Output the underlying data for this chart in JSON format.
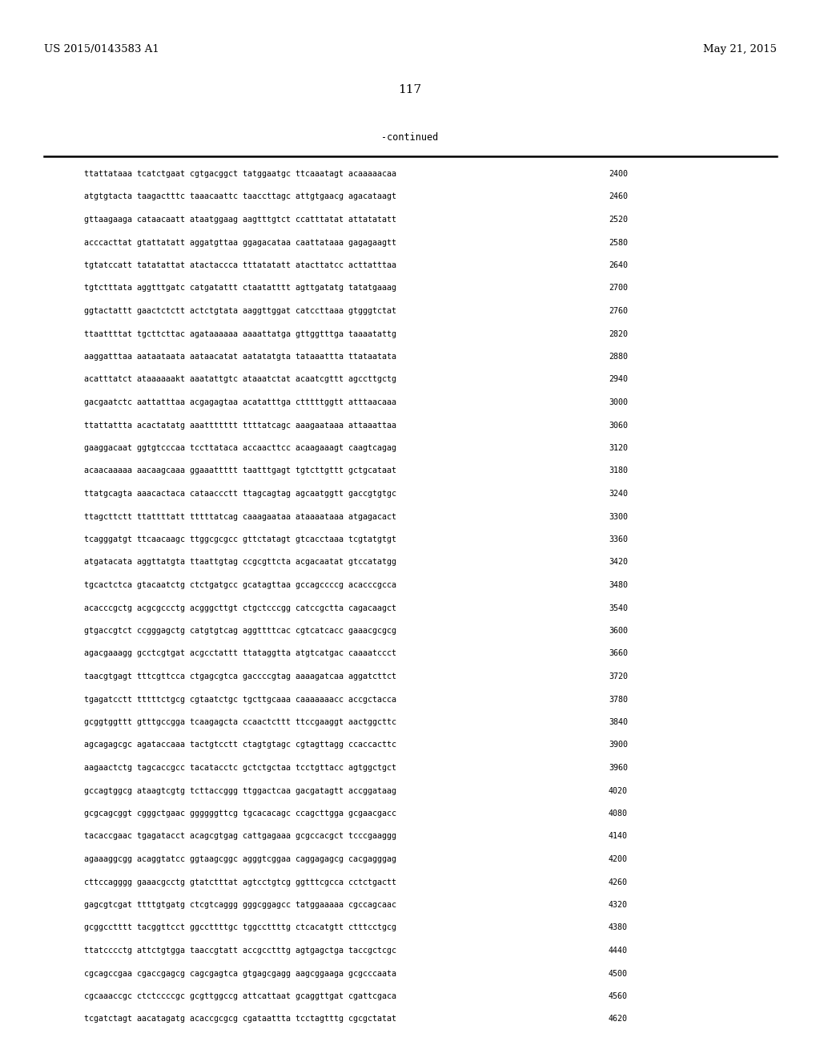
{
  "header_left": "US 2015/0143583 A1",
  "header_right": "May 21, 2015",
  "page_number": "117",
  "continued_label": "-continued",
  "background_color": "#ffffff",
  "text_color": "#000000",
  "sequence_lines": [
    [
      "ttattataaa tcatctgaat cgtgacggct tatggaatgc ttcaaatagt acaaaaacaa",
      "2400"
    ],
    [
      "atgtgtacta taagactttc taaacaattc taaccttagc attgtgaacg agacataagt",
      "2460"
    ],
    [
      "gttaagaaga cataacaatt ataatggaag aagtttgtct ccatttatat attatatatt",
      "2520"
    ],
    [
      "acccacttat gtattatatt aggatgttaa ggagacataa caattataaa gagagaagtt",
      "2580"
    ],
    [
      "tgtatccatt tatatattat atactaccca tttatatatt atacttatcc acttatttaa",
      "2640"
    ],
    [
      "tgtctttata aggtttgatc catgatattt ctaatatttt agttgatatg tatatgaaag",
      "2700"
    ],
    [
      "ggtactattt gaactctctt actctgtata aaggttggat catccttaaa gtgggtctat",
      "2760"
    ],
    [
      "ttaattttat tgcttcttac agataaaaaa aaaattatga gttggtttga taaaatattg",
      "2820"
    ],
    [
      "aaggatttaa aataataata aataacatat aatatatgta tataaattta ttataatata",
      "2880"
    ],
    [
      "acatttatct ataaaaaakt aaatattgtc ataaatctat acaatcgttt agccttgctg",
      "2940"
    ],
    [
      "gacgaatctc aattatttaa acgagagtaa acatatttga ctttttggtt atttaacaaa",
      "3000"
    ],
    [
      "ttattattta acactatatg aaattttttt ttttatcagc aaagaataaa attaaattaa",
      "3060"
    ],
    [
      "gaaggacaat ggtgtcccaa tccttataca accaacttcc acaagaaagt caagtcagag",
      "3120"
    ],
    [
      "acaacaaaaa aacaagcaaa ggaaattttt taatttgagt tgtcttgttt gctgcataat",
      "3180"
    ],
    [
      "ttatgcagta aaacactaca cataaccctt ttagcagtag agcaatggtt gaccgtgtgc",
      "3240"
    ],
    [
      "ttagcttctt ttattttatt tttttatcag caaagaataa ataaaataaa atgagacact",
      "3300"
    ],
    [
      "tcagggatgt ttcaacaagc ttggcgcgcc gttctatagt gtcacctaaa tcgtatgtgt",
      "3360"
    ],
    [
      "atgatacata aggttatgta ttaattgtag ccgcgttcta acgacaatat gtccatatgg",
      "3420"
    ],
    [
      "tgcactctca gtacaatctg ctctgatgcc gcatagttaa gccagccccg acacccgcca",
      "3480"
    ],
    [
      "acacccgctg acgcgccctg acgggcttgt ctgctcccgg catccgctta cagacaagct",
      "3540"
    ],
    [
      "gtgaccgtct ccgggagctg catgtgtcag aggttttcac cgtcatcacc gaaacgcgcg",
      "3600"
    ],
    [
      "agacgaaagg gcctcgtgat acgcctattt ttataggtta atgtcatgac caaaatccct",
      "3660"
    ],
    [
      "taacgtgagt tttcgttcca ctgagcgtca gaccccgtag aaaagatcaa aggatcttct",
      "3720"
    ],
    [
      "tgagatcctt tttttctgcg cgtaatctgc tgcttgcaaa caaaaaaacc accgctacca",
      "3780"
    ],
    [
      "gcggtggttt gtttgccgga tcaagagcta ccaactcttt ttccgaaggt aactggcttc",
      "3840"
    ],
    [
      "agcagagcgc agataccaaa tactgtcctt ctagtgtagc cgtagttagg ccaccacttc",
      "3900"
    ],
    [
      "aagaactctg tagcaccgcc tacatacctc gctctgctaa tcctgttacc agtggctgct",
      "3960"
    ],
    [
      "gccagtggcg ataagtcgtg tcttaccggg ttggactcaa gacgatagtt accggataag",
      "4020"
    ],
    [
      "gcgcagcggt cgggctgaac ggggggttcg tgcacacagc ccagcttgga gcgaacgacc",
      "4080"
    ],
    [
      "tacaccgaac tgagatacct acagcgtgag cattgagaaa gcgccacgct tcccgaaggg",
      "4140"
    ],
    [
      "agaaaggcgg acaggtatcc ggtaagcggc agggtcggaa caggagagcg cacgagggag",
      "4200"
    ],
    [
      "cttccagggg gaaacgcctg gtatctttat agtcctgtcg ggtttcgcca cctctgactt",
      "4260"
    ],
    [
      "gagcgtcgat ttttgtgatg ctcgtcaggg gggcggagcc tatggaaaaa cgccagcaac",
      "4320"
    ],
    [
      "gcggcctttt tacggttcct ggccttttgc tggccttttg ctcacatgtt ctttcctgcg",
      "4380"
    ],
    [
      "ttatcccctg attctgtgga taaccgtatt accgcctttg agtgagctga taccgctcgc",
      "4440"
    ],
    [
      "cgcagccgaa cgaccgagcg cagcgagtca gtgagcgagg aagcggaaga gcgcccaata",
      "4500"
    ],
    [
      "cgcaaaccgc ctctccccgc gcgttggccg attcattaat gcaggttgat cgattcgaca",
      "4560"
    ],
    [
      "tcgatctagt aacatagatg acaccgcgcg cgataattta tcctagtttg cgcgctatat",
      "4620"
    ]
  ]
}
